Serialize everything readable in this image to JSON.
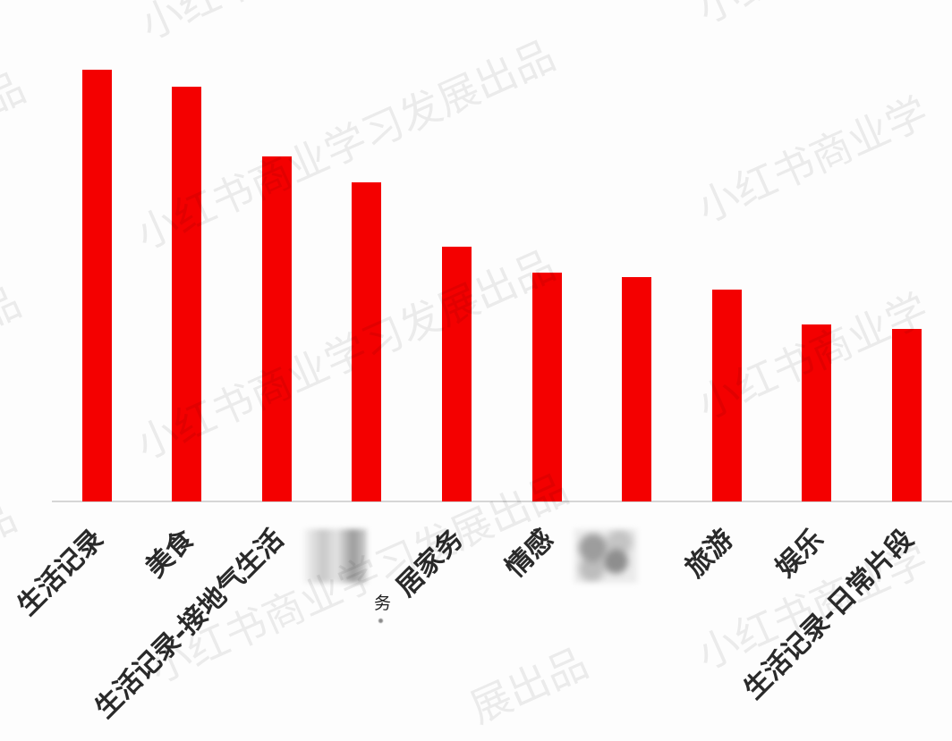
{
  "watermark": "小红书商业学习发展出品",
  "watermark_partial": "小红书商业学",
  "watermark_tail": "展出品",
  "stray_text": "务",
  "colors": {
    "bar": "#f40000",
    "axis": "#d6d6d6",
    "label_text": "#2a2a2a",
    "background": "#fdfdfd"
  },
  "chart_data": {
    "type": "bar",
    "title": "",
    "xlabel": "",
    "ylabel": "",
    "categories": [
      "生活记录",
      "美食",
      "生活记录-接地气生活",
      "",
      "居家务",
      "情感",
      "",
      "旅游",
      "娱乐",
      "生活记录-日常片段"
    ],
    "label_blurred": [
      false,
      false,
      false,
      true,
      false,
      false,
      true,
      false,
      false,
      false
    ],
    "values": [
      1.0,
      0.96,
      0.8,
      0.74,
      0.59,
      0.53,
      0.52,
      0.49,
      0.41,
      0.4
    ],
    "y_axis": "hidden",
    "grid": false,
    "legend": "none"
  }
}
